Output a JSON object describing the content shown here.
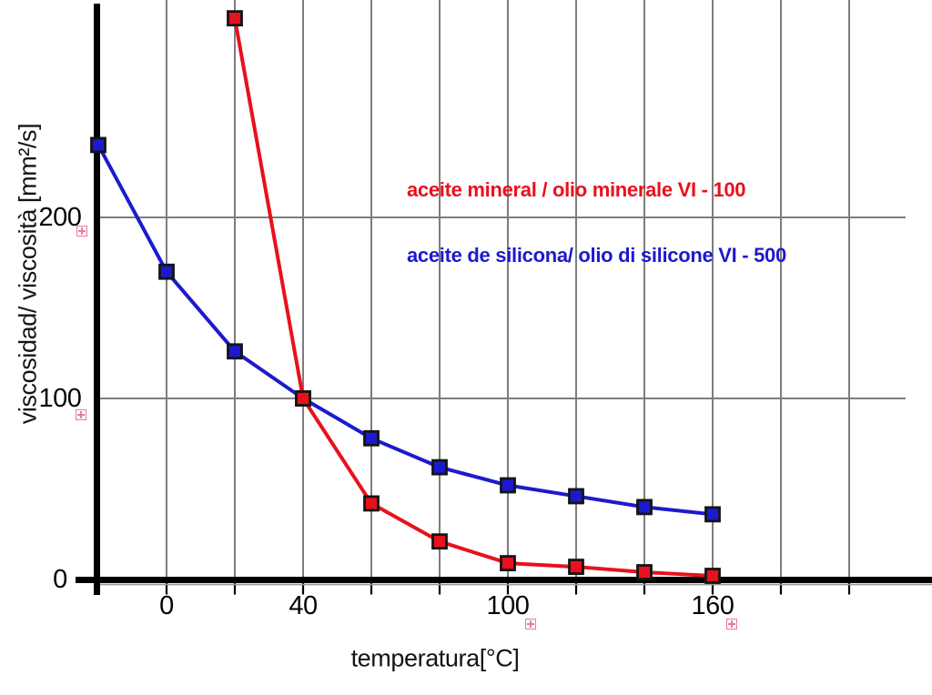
{
  "colors": {
    "mineral_red": "#e8111c",
    "silicone_blue": "#1d1acd",
    "grid": "#7d7d7d",
    "axis": "#000000",
    "selection_handle_pink": "#e8799f"
  },
  "chart_data": {
    "type": "line",
    "title": "",
    "xlabel": "temperatura[°C]",
    "ylabel": "viscosidad/ viscosità [mm²/s]",
    "xlim": [
      -27,
      224
    ],
    "ylim": [
      0,
      320
    ],
    "grid": true,
    "legend_position": "inside-top-right",
    "x_labeled_ticks": [
      0,
      40,
      100,
      160
    ],
    "x_gridlines": [
      0,
      20,
      40,
      60,
      80,
      100,
      120,
      140,
      160,
      180,
      200
    ],
    "y_labeled_ticks": [
      0,
      100,
      200
    ],
    "y_gridlines": [
      100,
      200
    ],
    "series": [
      {
        "name": "aceite mineral / olio minerale VI - 100",
        "color": "#e8111c",
        "x": [
          20,
          40,
          60,
          80,
          100,
          120,
          140,
          160
        ],
        "y": [
          310,
          100,
          42,
          21,
          9,
          7,
          4,
          2
        ]
      },
      {
        "name": "aceite de silicona/ olio di silicone VI - 500",
        "color": "#1d1acd",
        "x": [
          -20,
          0,
          20,
          40,
          60,
          80,
          100,
          120,
          140,
          160
        ],
        "y": [
          240,
          170,
          126,
          100,
          78,
          62,
          52,
          46,
          40,
          36
        ]
      }
    ]
  }
}
